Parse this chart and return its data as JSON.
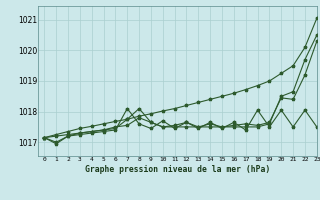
{
  "title": "Graphe pression niveau de la mer (hPa)",
  "background_color": "#cce8ea",
  "grid_color": "#aacfcf",
  "line_color": "#2d5a2d",
  "xlim": [
    -0.5,
    23
  ],
  "ylim": [
    1016.55,
    1021.45
  ],
  "yticks": [
    1017,
    1018,
    1019,
    1020,
    1021
  ],
  "xtick_labels": [
    "0",
    "1",
    "2",
    "3",
    "4",
    "5",
    "6",
    "7",
    "8",
    "9",
    "10",
    "11",
    "12",
    "13",
    "14",
    "15",
    "16",
    "17",
    "18",
    "19",
    "20",
    "21",
    "22",
    "23"
  ],
  "series": {
    "line1_smooth": [
      1017.15,
      1017.25,
      1017.35,
      1017.45,
      1017.52,
      1017.6,
      1017.68,
      1017.75,
      1017.85,
      1017.93,
      1018.02,
      1018.1,
      1018.2,
      1018.3,
      1018.4,
      1018.5,
      1018.6,
      1018.72,
      1018.85,
      1019.0,
      1019.25,
      1019.5,
      1020.1,
      1021.05
    ],
    "line2_upper": [
      1017.15,
      1017.0,
      1017.2,
      1017.3,
      1017.35,
      1017.4,
      1017.5,
      1017.55,
      1017.8,
      1017.65,
      1017.5,
      1017.5,
      1017.5,
      1017.5,
      1017.5,
      1017.5,
      1017.5,
      1017.5,
      1017.5,
      1017.6,
      1018.5,
      1018.65,
      1019.7,
      1020.5
    ],
    "line3_mid": [
      1017.15,
      1017.2,
      1017.25,
      1017.3,
      1017.35,
      1017.4,
      1017.45,
      1017.75,
      1018.1,
      1017.65,
      1017.5,
      1017.55,
      1017.65,
      1017.5,
      1017.6,
      1017.5,
      1017.55,
      1017.6,
      1017.55,
      1017.65,
      1018.45,
      1018.4,
      1019.2,
      1020.3
    ],
    "line4_osc": [
      1017.15,
      1016.95,
      1017.2,
      1017.25,
      1017.3,
      1017.35,
      1017.4,
      1018.1,
      1017.6,
      1017.45,
      1017.7,
      1017.45,
      1017.65,
      1017.45,
      1017.65,
      1017.45,
      1017.65,
      1017.4,
      1018.05,
      1017.5,
      1018.05,
      1017.5,
      1018.05,
      1017.5
    ]
  }
}
